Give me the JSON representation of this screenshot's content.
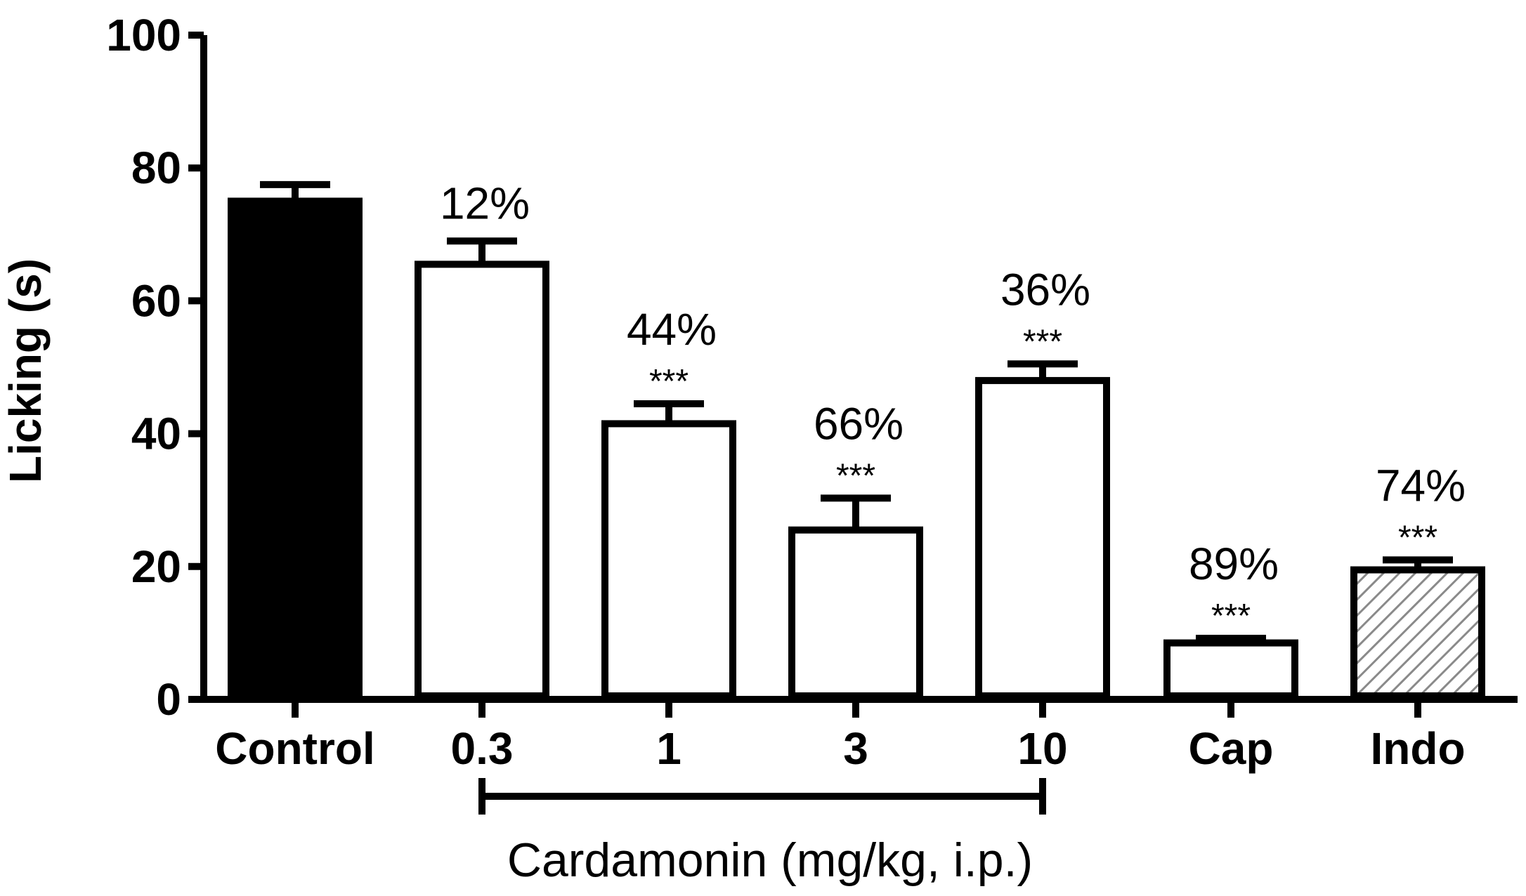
{
  "chart_data": {
    "type": "bar",
    "categories": [
      "Control",
      "0.3",
      "1",
      "3",
      "10",
      "Cap",
      "Indo"
    ],
    "values": [
      75,
      65.5,
      41.5,
      25.5,
      48,
      8.5,
      19.5
    ],
    "errors": [
      2.5,
      3.5,
      3,
      4.8,
      2.5,
      0.7,
      1.5
    ],
    "percent_labels": [
      "",
      "12%",
      "44%",
      "66%",
      "36%",
      "89%",
      "74%"
    ],
    "significance": [
      "",
      "",
      "***",
      "***",
      "***",
      "***",
      "***"
    ],
    "fills": [
      "solid-black",
      "white",
      "white",
      "white",
      "white",
      "white",
      "hatched-gray"
    ],
    "ylabel": "Licking (s)",
    "xlabel": "",
    "ylim": [
      0,
      100
    ],
    "yticks": [
      0,
      20,
      40,
      60,
      80,
      100
    ],
    "group_bracket": {
      "label": "Cardamonin (mg/kg, i.p.)",
      "from_category": "0.3",
      "to_category": "10"
    },
    "colors": {
      "bar_stroke": "#000000",
      "control_fill": "#000000",
      "default_fill": "#ffffff",
      "hatch": "#8a8a8a"
    }
  }
}
